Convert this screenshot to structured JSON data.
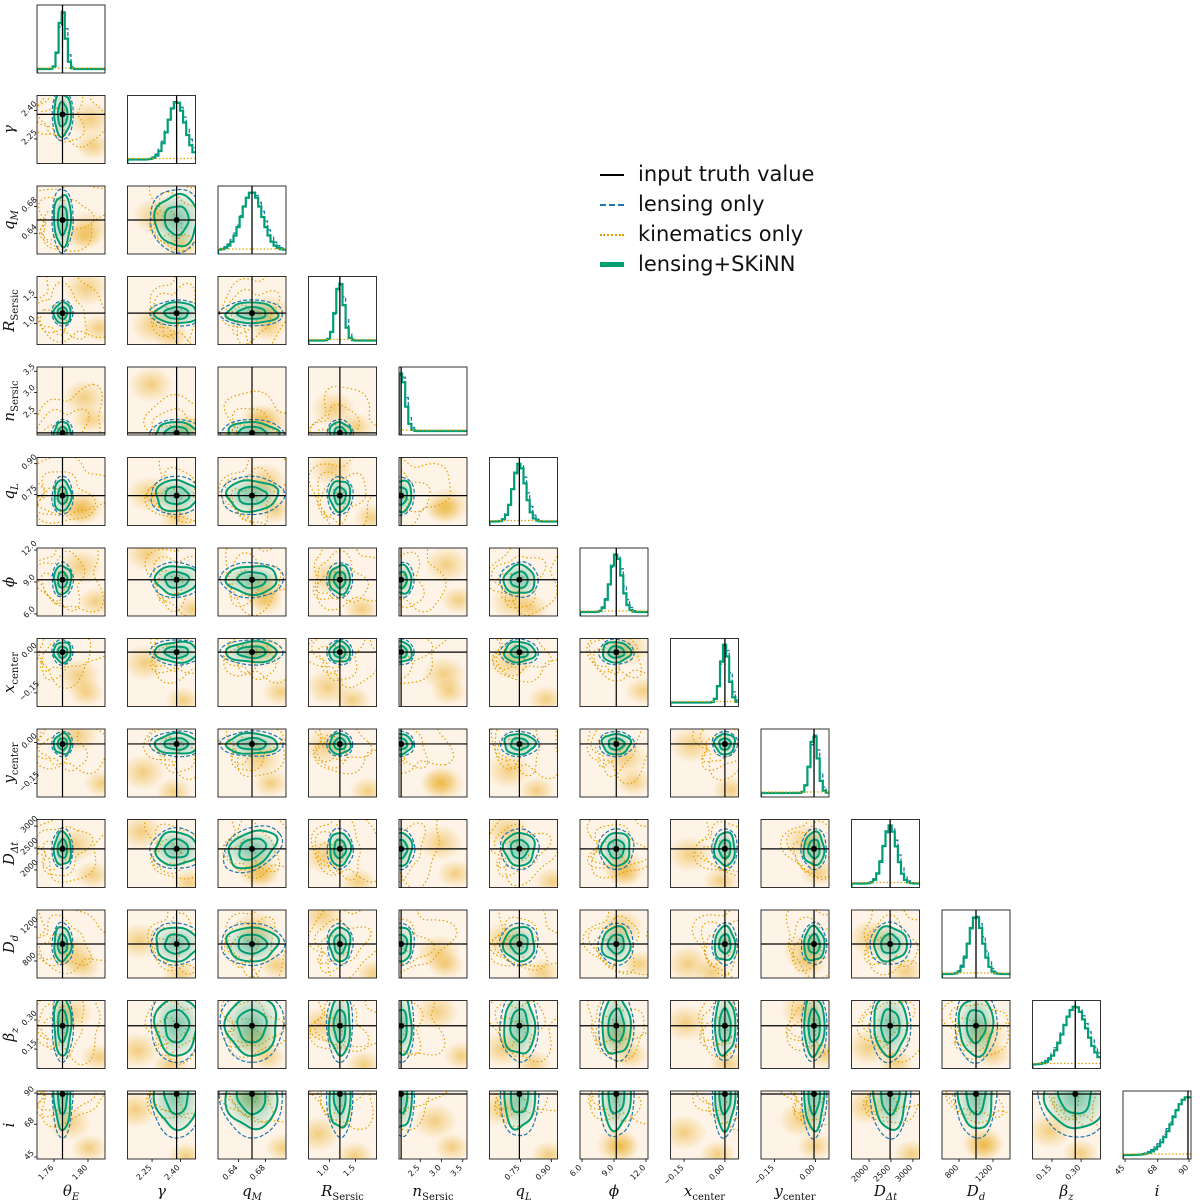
{
  "chart_data": {
    "type": "corner",
    "parameters": [
      {
        "label": "θ_E",
        "ticks": [
          "1.76",
          "1.80"
        ],
        "range": [
          1.74,
          1.82
        ],
        "truth": 1.77,
        "lens_sd": 0.004,
        "kin_sd": 0.02
      },
      {
        "label": "γ",
        "ticks": [
          "2.25",
          "2.40"
        ],
        "range": [
          2.12,
          2.48
        ],
        "truth": 2.38,
        "lens_sd": 0.045,
        "kin_sd": 0.1
      },
      {
        "label": "q_M",
        "ticks": [
          "0.64",
          "0.68"
        ],
        "range": [
          0.61,
          0.71
        ],
        "truth": 0.66,
        "lens_sd": 0.015,
        "kin_sd": 0.03
      },
      {
        "label": "R_Sersic",
        "ticks": [
          "1.0",
          "1.5"
        ],
        "range": [
          0.6,
          1.9
        ],
        "truth": 1.2,
        "lens_sd": 0.08,
        "kin_sd": 0.35
      },
      {
        "label": "n_Sersic",
        "ticks": [
          "2.5",
          "3.0",
          "3.5"
        ],
        "range": [
          2.0,
          3.6
        ],
        "truth": 2.05,
        "lens_sd": 0.1,
        "kin_sd": 0.5
      },
      {
        "label": "q_L",
        "ticks": [
          "0.75",
          "0.90"
        ],
        "range": [
          0.6,
          0.93
        ],
        "truth": 0.745,
        "lens_sd": 0.03,
        "kin_sd": 0.1
      },
      {
        "label": "ϕ",
        "ticks": [
          "6.0",
          "9.0",
          "12.0"
        ],
        "range": [
          6.0,
          12.0
        ],
        "truth": 9.2,
        "lens_sd": 0.5,
        "kin_sd": 2.0
      },
      {
        "label": "x_center",
        "ticks": [
          "−0.15",
          "0.00"
        ],
        "range": [
          -0.2,
          0.05
        ],
        "truth": 0.0,
        "lens_sd": 0.015,
        "kin_sd": 0.07
      },
      {
        "label": "y_center",
        "ticks": [
          "−0.15",
          "0.00"
        ],
        "range": [
          -0.2,
          0.05
        ],
        "truth": -0.005,
        "lens_sd": 0.015,
        "kin_sd": 0.07
      },
      {
        "label": "D_Δt",
        "ticks": [
          "2000",
          "2500",
          "3000"
        ],
        "range": [
          1600,
          3150
        ],
        "truth": 2480,
        "lens_sd": 150,
        "kin_sd": 400
      },
      {
        "label": "D_d",
        "ticks": [
          "800",
          "1200"
        ],
        "range": [
          600,
          1400
        ],
        "truth": 1000,
        "lens_sd": 80,
        "kin_sd": 200
      },
      {
        "label": "β_z",
        "ticks": [
          "0.15",
          "0.30"
        ],
        "range": [
          0.05,
          0.4
        ],
        "truth": 0.27,
        "lens_sd": 0.06,
        "kin_sd": 0.1
      },
      {
        "label": "i",
        "ticks": [
          "45",
          "68",
          "90"
        ],
        "range": [
          45,
          90
        ],
        "truth": 88,
        "lens_sd": 10,
        "kin_sd": 15
      }
    ],
    "legend": [
      {
        "label": "input truth value",
        "color": "#000000",
        "style": "solid"
      },
      {
        "label": "lensing only",
        "color": "#1f77b4",
        "style": "dashed"
      },
      {
        "label": "kinematics only",
        "color": "#e69f00",
        "style": "dotted"
      },
      {
        "label": "lensing+SKiNN",
        "color": "#009e73",
        "style": "solid-thick"
      }
    ],
    "colors": {
      "truth": "#000000",
      "lensing": "#1f77b4",
      "kinematics": "#e69f00",
      "combined": "#009e73"
    },
    "legend_position": "top-right"
  }
}
